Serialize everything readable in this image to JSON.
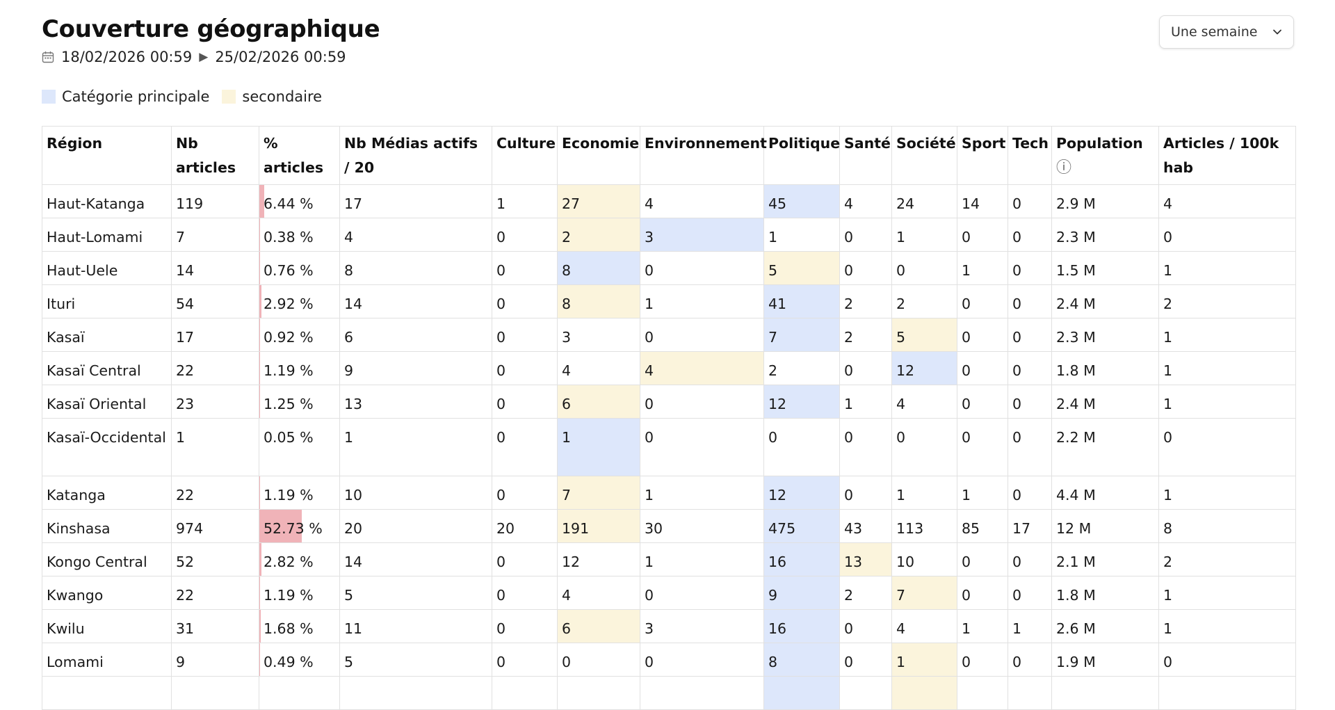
{
  "page": {
    "title": "Couverture géographique",
    "date_start": "18/02/2026 00:59",
    "date_end": "25/02/2026 00:59",
    "period_select": "Une semaine"
  },
  "legend": {
    "primary_label": "Catégorie principale",
    "primary_color": "#dde7fb",
    "secondary_label": "secondaire",
    "secondary_color": "#fbf4dc"
  },
  "icons": {
    "calendar": "calendar-icon",
    "arrow": "play-arrow-icon",
    "chevron": "chevron-down-icon",
    "info": "info-icon"
  },
  "bar_color": "#f0b3b8",
  "table": {
    "headers": [
      "Région",
      "Nb articles",
      "% articles",
      "Nb Médias actifs / 20",
      "Culture",
      "Economie",
      "Environnement",
      "Politique",
      "Santé",
      "Société",
      "Sport",
      "Tech",
      "Population",
      "Articles / 100k hab"
    ],
    "population_info": "ⓘ",
    "rows": [
      {
        "region": "Haut-Katanga",
        "nb": "119",
        "pct": "6.44 %",
        "pct_value": 6.44,
        "medias": "17",
        "culture": "1",
        "economie": "27",
        "environnement": "4",
        "politique": "45",
        "sante": "4",
        "societe": "24",
        "sport": "14",
        "tech": "0",
        "population": "2.9 M",
        "per100k": "4",
        "primary": "politique",
        "secondary": "economie"
      },
      {
        "region": "Haut-Lomami",
        "nb": "7",
        "pct": "0.38 %",
        "pct_value": 0.38,
        "medias": "4",
        "culture": "0",
        "economie": "2",
        "environnement": "3",
        "politique": "1",
        "sante": "0",
        "societe": "1",
        "sport": "0",
        "tech": "0",
        "population": "2.3 M",
        "per100k": "0",
        "primary": "environnement",
        "secondary": "economie"
      },
      {
        "region": "Haut-Uele",
        "nb": "14",
        "pct": "0.76 %",
        "pct_value": 0.76,
        "medias": "8",
        "culture": "0",
        "economie": "8",
        "environnement": "0",
        "politique": "5",
        "sante": "0",
        "societe": "0",
        "sport": "1",
        "tech": "0",
        "population": "1.5 M",
        "per100k": "1",
        "primary": "economie",
        "secondary": "politique"
      },
      {
        "region": "Ituri",
        "nb": "54",
        "pct": "2.92 %",
        "pct_value": 2.92,
        "medias": "14",
        "culture": "0",
        "economie": "8",
        "environnement": "1",
        "politique": "41",
        "sante": "2",
        "societe": "2",
        "sport": "0",
        "tech": "0",
        "population": "2.4 M",
        "per100k": "2",
        "primary": "politique",
        "secondary": "economie"
      },
      {
        "region": "Kasaï",
        "nb": "17",
        "pct": "0.92 %",
        "pct_value": 0.92,
        "medias": "6",
        "culture": "0",
        "economie": "3",
        "environnement": "0",
        "politique": "7",
        "sante": "2",
        "societe": "5",
        "sport": "0",
        "tech": "0",
        "population": "2.3 M",
        "per100k": "1",
        "primary": "politique",
        "secondary": "societe"
      },
      {
        "region": "Kasaï Central",
        "nb": "22",
        "pct": "1.19 %",
        "pct_value": 1.19,
        "medias": "9",
        "culture": "0",
        "economie": "4",
        "environnement": "4",
        "politique": "2",
        "sante": "0",
        "societe": "12",
        "sport": "0",
        "tech": "0",
        "population": "1.8 M",
        "per100k": "1",
        "primary": "societe",
        "secondary": "environnement"
      },
      {
        "region": "Kasaï Oriental",
        "nb": "23",
        "pct": "1.25 %",
        "pct_value": 1.25,
        "medias": "13",
        "culture": "0",
        "economie": "6",
        "environnement": "0",
        "politique": "12",
        "sante": "1",
        "societe": "4",
        "sport": "0",
        "tech": "0",
        "population": "2.4 M",
        "per100k": "1",
        "primary": "politique",
        "secondary": "economie"
      },
      {
        "region": "Kasaï-Occidental",
        "nb": "1",
        "pct": "0.05 %",
        "pct_value": 0.05,
        "medias": "1",
        "culture": "0",
        "economie": "1",
        "environnement": "0",
        "politique": "0",
        "sante": "0",
        "societe": "0",
        "sport": "0",
        "tech": "0",
        "population": "2.2 M",
        "per100k": "0",
        "primary": "economie",
        "secondary": ""
      },
      {
        "region": "Katanga",
        "nb": "22",
        "pct": "1.19 %",
        "pct_value": 1.19,
        "medias": "10",
        "culture": "0",
        "economie": "7",
        "environnement": "1",
        "politique": "12",
        "sante": "0",
        "societe": "1",
        "sport": "1",
        "tech": "0",
        "population": "4.4 M",
        "per100k": "1",
        "primary": "politique",
        "secondary": "economie"
      },
      {
        "region": "Kinshasa",
        "nb": "974",
        "pct": "52.73 %",
        "pct_value": 52.73,
        "medias": "20",
        "culture": "20",
        "economie": "191",
        "environnement": "30",
        "politique": "475",
        "sante": "43",
        "societe": "113",
        "sport": "85",
        "tech": "17",
        "population": "12 M",
        "per100k": "8",
        "primary": "politique",
        "secondary": "economie"
      },
      {
        "region": "Kongo Central",
        "nb": "52",
        "pct": "2.82 %",
        "pct_value": 2.82,
        "medias": "14",
        "culture": "0",
        "economie": "12",
        "environnement": "1",
        "politique": "16",
        "sante": "13",
        "societe": "10",
        "sport": "0",
        "tech": "0",
        "population": "2.1 M",
        "per100k": "2",
        "primary": "politique",
        "secondary": "sante"
      },
      {
        "region": "Kwango",
        "nb": "22",
        "pct": "1.19 %",
        "pct_value": 1.19,
        "medias": "5",
        "culture": "0",
        "economie": "4",
        "environnement": "0",
        "politique": "9",
        "sante": "2",
        "societe": "7",
        "sport": "0",
        "tech": "0",
        "population": "1.8 M",
        "per100k": "1",
        "primary": "politique",
        "secondary": "societe"
      },
      {
        "region": "Kwilu",
        "nb": "31",
        "pct": "1.68 %",
        "pct_value": 1.68,
        "medias": "11",
        "culture": "0",
        "economie": "6",
        "environnement": "3",
        "politique": "16",
        "sante": "0",
        "societe": "4",
        "sport": "1",
        "tech": "1",
        "population": "2.6 M",
        "per100k": "1",
        "primary": "politique",
        "secondary": "economie"
      },
      {
        "region": "Lomami",
        "nb": "9",
        "pct": "0.49 %",
        "pct_value": 0.49,
        "medias": "5",
        "culture": "0",
        "economie": "0",
        "environnement": "0",
        "politique": "8",
        "sante": "0",
        "societe": "1",
        "sport": "0",
        "tech": "0",
        "population": "1.9 M",
        "per100k": "0",
        "primary": "politique",
        "secondary": "societe"
      },
      {
        "region": "",
        "nb": "",
        "pct": "",
        "pct_value": 0,
        "medias": "",
        "culture": "",
        "economie": "",
        "environnement": "",
        "politique": "",
        "sante": "",
        "societe": "",
        "sport": "",
        "tech": "",
        "population": "",
        "per100k": "",
        "primary": "politique",
        "secondary": "societe"
      }
    ]
  }
}
